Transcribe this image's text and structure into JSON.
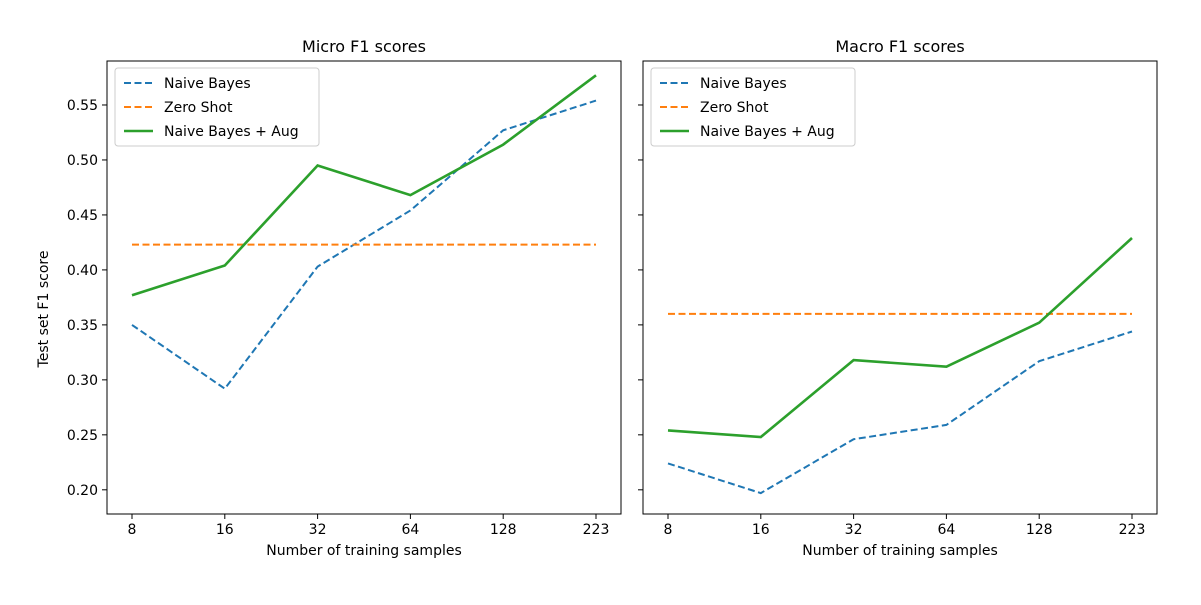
{
  "figure": {
    "ylabel": "Test set F1 score"
  },
  "colors": {
    "naive_bayes": "#1f77b4",
    "zero_shot": "#ff7f0e",
    "naive_bayes_aug": "#2ca02c"
  },
  "chart_data": [
    {
      "type": "line",
      "title": "Micro F1 scores",
      "xlabel": "Number of training samples",
      "ylabel": "Test set F1 score",
      "x": [
        "8",
        "16",
        "32",
        "64",
        "128",
        "223"
      ],
      "ylim": [
        0.178,
        0.59
      ],
      "yticks": [
        0.2,
        0.25,
        0.3,
        0.35,
        0.4,
        0.45,
        0.5,
        0.55
      ],
      "ytick_labels": [
        "0.20",
        "0.25",
        "0.30",
        "0.35",
        "0.40",
        "0.45",
        "0.50",
        "0.55"
      ],
      "grid": false,
      "legend": "top-left",
      "series": [
        {
          "name": "Naive Bayes",
          "style": "dashed",
          "color": "#1f77b4",
          "values": [
            0.35,
            0.292,
            0.403,
            0.454,
            0.527,
            0.554
          ]
        },
        {
          "name": "Zero Shot",
          "style": "dashed",
          "color": "#ff7f0e",
          "values": [
            0.423,
            0.423,
            0.423,
            0.423,
            0.423,
            0.423
          ]
        },
        {
          "name": "Naive Bayes + Aug",
          "style": "solid",
          "color": "#2ca02c",
          "values": [
            0.377,
            0.404,
            0.495,
            0.468,
            0.514,
            0.577
          ]
        }
      ]
    },
    {
      "type": "line",
      "title": "Macro F1 scores",
      "xlabel": "Number of training samples",
      "ylabel": "",
      "x": [
        "8",
        "16",
        "32",
        "64",
        "128",
        "223"
      ],
      "ylim": [
        0.178,
        0.59
      ],
      "yticks": [
        0.2,
        0.25,
        0.3,
        0.35,
        0.4,
        0.45,
        0.5,
        0.55
      ],
      "ytick_labels": [],
      "grid": false,
      "legend": "top-left",
      "series": [
        {
          "name": "Naive Bayes",
          "style": "dashed",
          "color": "#1f77b4",
          "values": [
            0.224,
            0.197,
            0.246,
            0.259,
            0.317,
            0.344
          ]
        },
        {
          "name": "Zero Shot",
          "style": "dashed",
          "color": "#ff7f0e",
          "values": [
            0.36,
            0.36,
            0.36,
            0.36,
            0.36,
            0.36
          ]
        },
        {
          "name": "Naive Bayes + Aug",
          "style": "solid",
          "color": "#2ca02c",
          "values": [
            0.254,
            0.248,
            0.318,
            0.312,
            0.352,
            0.429
          ]
        }
      ]
    }
  ]
}
